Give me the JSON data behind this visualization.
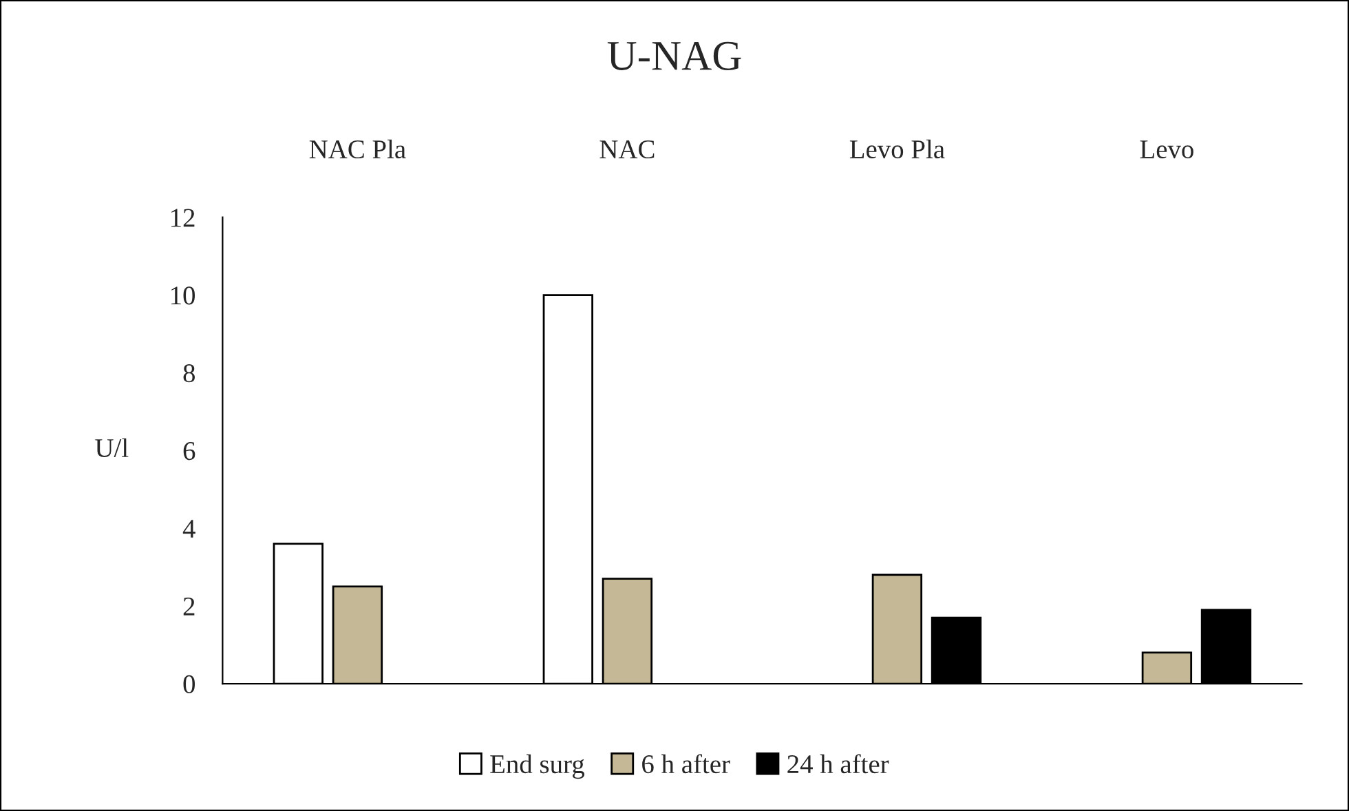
{
  "chart_data": {
    "type": "bar",
    "title": "U-NAG",
    "ylabel": "U/l",
    "categories": [
      "NAC Pla",
      "NAC",
      "Levo Pla",
      "Levo"
    ],
    "series": [
      {
        "name": "End surg",
        "color": "#ffffff",
        "values": [
          3.6,
          10.0,
          null,
          null
        ]
      },
      {
        "name": "6 h after",
        "color": "#c4b896",
        "values": [
          2.5,
          2.7,
          2.8,
          0.8
        ]
      },
      {
        "name": "24 h after",
        "color": "#000000",
        "values": [
          null,
          null,
          1.7,
          1.9
        ]
      }
    ],
    "ylim": [
      0,
      12
    ],
    "yticks": [
      0,
      2,
      4,
      6,
      8,
      10,
      12
    ],
    "grid": false,
    "legend": "bottom"
  }
}
